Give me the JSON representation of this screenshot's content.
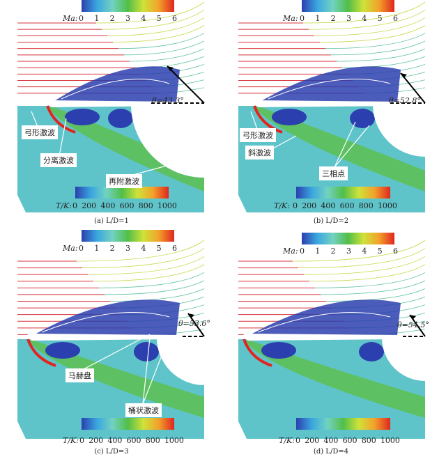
{
  "figure": {
    "ma_label": "Ma:",
    "ma_ticks": [
      "0",
      "1",
      "2",
      "3",
      "4",
      "5",
      "6"
    ],
    "t_label": "T/K:",
    "t_ticks": [
      "0",
      "200",
      "400",
      "600",
      "800",
      "1000"
    ],
    "colormap": [
      "#2b3fae",
      "#3aa6e0",
      "#72d2c2",
      "#52be48",
      "#cfe23a",
      "#f2a12a",
      "#e0261f"
    ],
    "background_color": "#5ec4ca",
    "panels": [
      {
        "caption": "(a) L/D=1",
        "theta": "θ=43.3°",
        "labels": [
          "弓形激波",
          "分离激波",
          "再附激波"
        ]
      },
      {
        "caption": "(b) L/D=2",
        "theta": "θ=52.8°",
        "labels": [
          "弓形激波",
          "斜激波",
          "三相点"
        ]
      },
      {
        "caption": "(c) L/D=3",
        "theta": "θ=53.6°",
        "labels": [
          "马赫盘",
          "桶状激波"
        ]
      },
      {
        "caption": "(d) L/D=4",
        "theta": "θ=54.5°",
        "labels": []
      }
    ]
  }
}
